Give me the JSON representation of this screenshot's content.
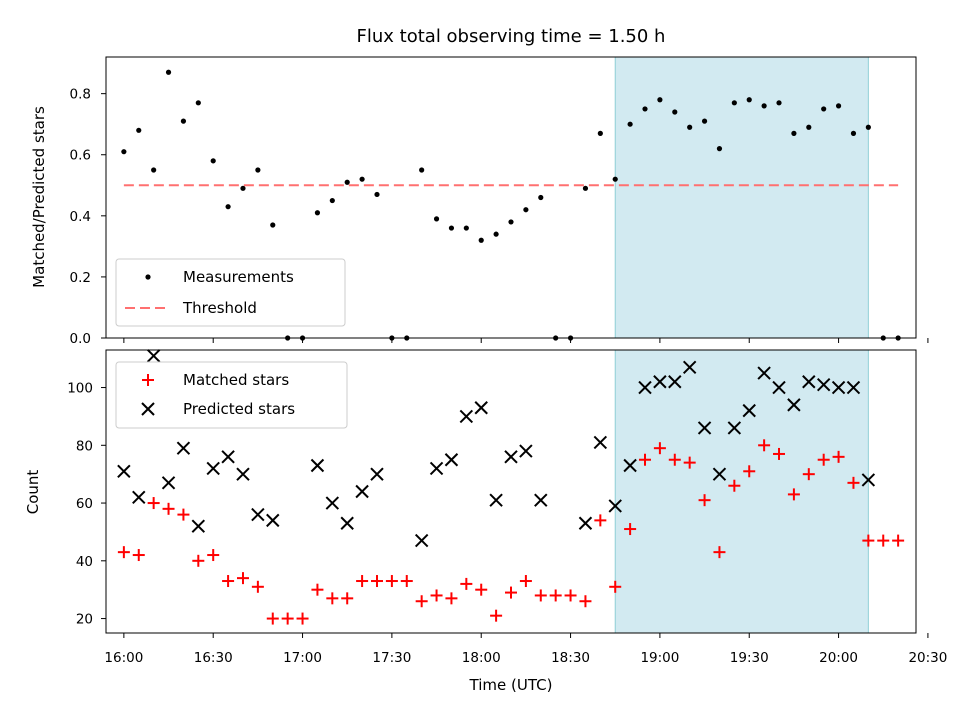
{
  "chart_data": [
    {
      "type": "scatter",
      "title": "Flux total observing time = 1.50 h",
      "xlabel": "",
      "ylabel": "Matched/Predicted stars",
      "ylim": [
        0,
        0.92
      ],
      "yticks": [
        "0.0",
        "0.2",
        "0.4",
        "0.6",
        "0.8"
      ],
      "shaded_interval": [
        "18:45",
        "20:10"
      ],
      "shaded_color": "#add8e6",
      "legend_position": "lower-left",
      "series": [
        {
          "name": "Measurements",
          "marker": "dot",
          "color": "#000000",
          "x": [
            "16:00",
            "16:05",
            "16:10",
            "16:15",
            "16:20",
            "16:25",
            "16:30",
            "16:35",
            "16:40",
            "16:45",
            "16:50",
            "16:55",
            "17:00",
            "17:05",
            "17:10",
            "17:15",
            "17:20",
            "17:25",
            "17:30",
            "17:35",
            "17:40",
            "17:45",
            "17:50",
            "17:55",
            "18:00",
            "18:05",
            "18:10",
            "18:15",
            "18:20",
            "18:25",
            "18:30",
            "18:35",
            "18:40",
            "18:45",
            "18:50",
            "18:55",
            "19:00",
            "19:05",
            "19:10",
            "19:15",
            "19:20",
            "19:25",
            "19:30",
            "19:35",
            "19:40",
            "19:45",
            "19:50",
            "19:55",
            "20:00",
            "20:05",
            "20:10",
            "20:15",
            "20:20"
          ],
          "y": [
            0.61,
            0.68,
            0.55,
            0.87,
            0.71,
            0.77,
            0.58,
            0.43,
            0.49,
            0.55,
            0.37,
            0.0,
            0.0,
            0.41,
            0.45,
            0.51,
            0.52,
            0.47,
            0.0,
            0.0,
            0.55,
            0.39,
            0.36,
            0.36,
            0.32,
            0.34,
            0.38,
            0.42,
            0.46,
            0.0,
            0.0,
            0.49,
            0.67,
            0.52,
            0.7,
            0.75,
            0.78,
            0.74,
            0.69,
            0.71,
            0.62,
            0.77,
            0.78,
            0.76,
            0.77,
            0.67,
            0.69,
            0.75,
            0.76,
            0.67,
            0.69,
            0.0,
            0.0
          ]
        },
        {
          "name": "Threshold",
          "style": "dashed",
          "color": "#ff7070",
          "x": [
            "16:00",
            "20:20"
          ],
          "y": [
            0.5,
            0.5
          ]
        }
      ]
    },
    {
      "type": "scatter",
      "xlabel": "Time (UTC)",
      "ylabel": "Count",
      "ylim": [
        15,
        113
      ],
      "yticks": [
        "20",
        "40",
        "60",
        "80",
        "100"
      ],
      "xticks": [
        "16:00",
        "16:30",
        "17:00",
        "17:30",
        "18:00",
        "18:30",
        "19:00",
        "19:30",
        "20:00",
        "20:30"
      ],
      "shaded_interval": [
        "18:45",
        "20:10"
      ],
      "shaded_color": "#add8e6",
      "legend_position": "top-left",
      "series": [
        {
          "name": "Matched stars",
          "marker": "plus",
          "color": "#ff0000",
          "x": [
            "16:00",
            "16:05",
            "16:10",
            "16:15",
            "16:20",
            "16:25",
            "16:30",
            "16:35",
            "16:40",
            "16:45",
            "16:50",
            "16:55",
            "17:00",
            "17:05",
            "17:10",
            "17:15",
            "17:20",
            "17:25",
            "17:30",
            "17:35",
            "17:40",
            "17:45",
            "17:50",
            "17:55",
            "18:00",
            "18:05",
            "18:10",
            "18:15",
            "18:20",
            "18:25",
            "18:30",
            "18:35",
            "18:40",
            "18:45",
            "18:50",
            "18:55",
            "19:00",
            "19:05",
            "19:10",
            "19:15",
            "19:20",
            "19:25",
            "19:30",
            "19:35",
            "19:40",
            "19:45",
            "19:50",
            "19:55",
            "20:00",
            "20:05",
            "20:10",
            "20:15",
            "20:20"
          ],
          "y": [
            43,
            42,
            60,
            58,
            56,
            40,
            42,
            33,
            34,
            31,
            20,
            20,
            20,
            30,
            27,
            27,
            33,
            33,
            33,
            33,
            26,
            28,
            27,
            32,
            30,
            21,
            29,
            33,
            28,
            28,
            28,
            26,
            54,
            31,
            51,
            75,
            79,
            75,
            74,
            61,
            43,
            66,
            71,
            80,
            77,
            63,
            70,
            75,
            76,
            67,
            47,
            47,
            47
          ]
        },
        {
          "name": "Predicted stars",
          "marker": "x",
          "color": "#000000",
          "x": [
            "16:00",
            "16:05",
            "16:10",
            "16:15",
            "16:20",
            "16:25",
            "16:30",
            "16:35",
            "16:40",
            "16:45",
            "16:50",
            "17:05",
            "17:10",
            "17:15",
            "17:20",
            "17:25",
            "17:40",
            "17:45",
            "17:50",
            "17:55",
            "18:00",
            "18:05",
            "18:10",
            "18:15",
            "18:20",
            "18:35",
            "18:40",
            "18:45",
            "18:50",
            "18:55",
            "19:00",
            "19:05",
            "19:10",
            "19:15",
            "19:20",
            "19:25",
            "19:30",
            "19:35",
            "19:40",
            "19:45",
            "19:50",
            "19:55",
            "20:00",
            "20:05",
            "20:10"
          ],
          "y": [
            71,
            62,
            111,
            67,
            79,
            52,
            72,
            76,
            70,
            56,
            54,
            73,
            60,
            53,
            64,
            70,
            47,
            72,
            75,
            90,
            93,
            61,
            76,
            78,
            61,
            53,
            81,
            59,
            73,
            100,
            102,
            102,
            107,
            86,
            70,
            86,
            92,
            105,
            100,
            94,
            102,
            101,
            100,
            100,
            68
          ]
        }
      ]
    }
  ]
}
